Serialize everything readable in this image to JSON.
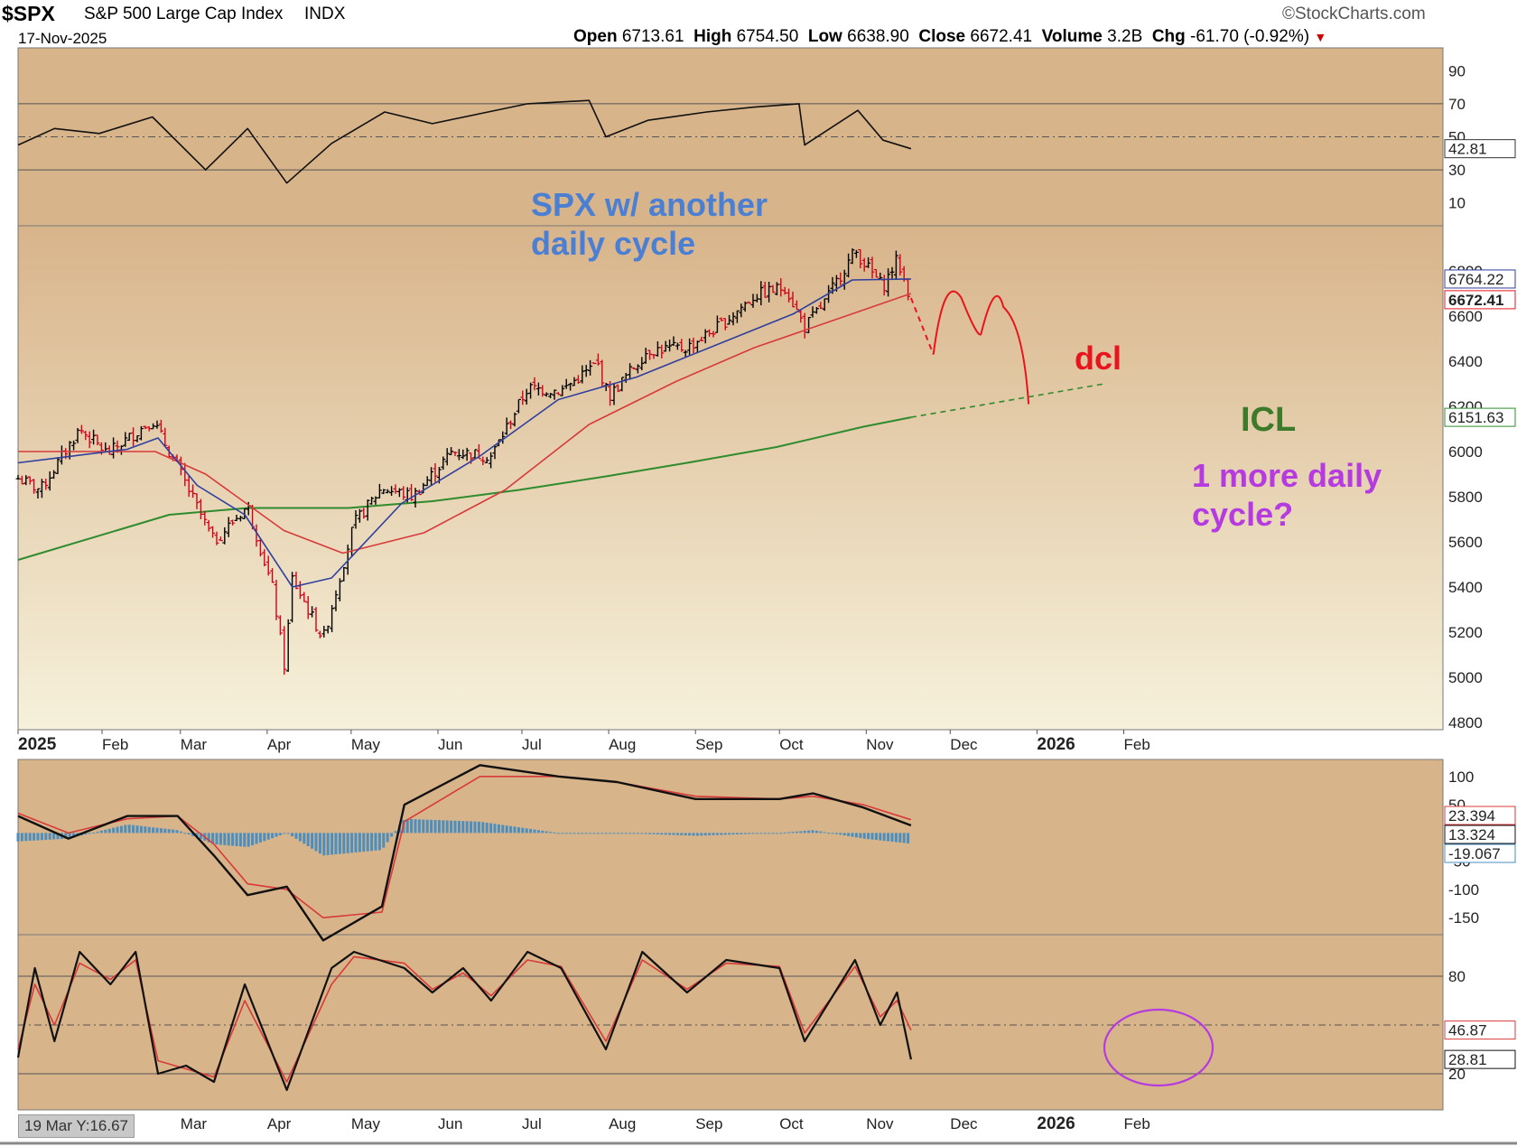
{
  "header": {
    "symbol": "$SPX",
    "name": "S&P 500 Large Cap Index",
    "exchange": "INDX",
    "date": "17-Nov-2025",
    "brand": "StockCharts.com",
    "open_label": "Open",
    "open": "6713.61",
    "high_label": "High",
    "high": "6754.50",
    "low_label": "Low",
    "low": "6638.90",
    "close_label": "Close",
    "close": "6672.41",
    "volume_label": "Volume",
    "volume": "3.2B",
    "chg_label": "Chg",
    "chg": "-61.70 (-0.92%)",
    "down_arrow": "▼"
  },
  "annotations": {
    "title_line1": "SPX w/ another",
    "title_line2": "daily cycle",
    "dcl": "dcl",
    "icl": "ICL",
    "question_line1": "1 more daily",
    "question_line2": "cycle?"
  },
  "tooltip": "19 Mar Y:16.67",
  "colors": {
    "bg_top": "#d8b48a",
    "bg_bottom": "#f6f1db",
    "ma_short": "#2f3f9e",
    "ma_mid": "#d83a3a",
    "ma_long": "#2e8b2e",
    "up_bar": "#000000",
    "down_bar": "#d0021b",
    "annot_blue": "#4a7fd4",
    "annot_red": "#e8141e",
    "annot_green": "#3d7a2a",
    "annot_purple": "#b53be0",
    "histogram": "#4a8fc0"
  },
  "chart_data": [
    {
      "type": "line",
      "name": "rsi",
      "ylim": [
        0,
        100
      ],
      "y_ticks": [
        10,
        30,
        50,
        70,
        90
      ],
      "reference_lines": [
        30,
        50,
        70
      ],
      "current_value": "42.81",
      "x": [
        "2025-01-02",
        "2025-01-15",
        "2025-01-31",
        "2025-02-19",
        "2025-03-10",
        "2025-03-25",
        "2025-04-08",
        "2025-04-24",
        "2025-05-13",
        "2025-05-30",
        "2025-06-16",
        "2025-07-03",
        "2025-07-25",
        "2025-07-31",
        "2025-08-15",
        "2025-09-05",
        "2025-09-22",
        "2025-10-08",
        "2025-10-10",
        "2025-10-29",
        "2025-11-07",
        "2025-11-17"
      ],
      "values": [
        45,
        55,
        52,
        62,
        30,
        55,
        22,
        46,
        65,
        58,
        64,
        70,
        72,
        50,
        60,
        65,
        68,
        70,
        45,
        66,
        48,
        42.81
      ]
    },
    {
      "type": "bar",
      "subtype": "ohlc",
      "name": "$SPX",
      "ylim": [
        4800,
        7000
      ],
      "y_ticks": [
        4800,
        5000,
        5200,
        5400,
        5600,
        5800,
        6000,
        6200,
        6400,
        6600,
        6800
      ],
      "x_ticks": [
        "2025",
        "Feb",
        "Mar",
        "Apr",
        "May",
        "Jun",
        "Jul",
        "Aug",
        "Sep",
        "Oct",
        "Nov",
        "Dec",
        "2026",
        "Feb"
      ],
      "price_labels": [
        "6764.22",
        "6672.41",
        "6151.63"
      ],
      "close_path": {
        "x": [
          "2025-01-02",
          "2025-01-10",
          "2025-01-24",
          "2025-02-03",
          "2025-02-19",
          "2025-02-28",
          "2025-03-13",
          "2025-03-25",
          "2025-04-03",
          "2025-04-08",
          "2025-04-09",
          "2025-04-21",
          "2025-05-02",
          "2025-05-12",
          "2025-05-23",
          "2025-06-06",
          "2025-06-20",
          "2025-07-03",
          "2025-07-15",
          "2025-07-28",
          "2025-08-01",
          "2025-08-15",
          "2025-08-29",
          "2025-09-10",
          "2025-09-22",
          "2025-10-03",
          "2025-10-10",
          "2025-10-17",
          "2025-10-28",
          "2025-10-31",
          "2025-11-07",
          "2025-11-12",
          "2025-11-17"
        ],
        "values": [
          5880,
          5830,
          6100,
          5990,
          6140,
          5930,
          5600,
          5760,
          5390,
          4980,
          5460,
          5170,
          5680,
          5840,
          5800,
          6000,
          5980,
          6280,
          6270,
          6390,
          6240,
          6450,
          6460,
          6560,
          6690,
          6730,
          6550,
          6660,
          6890,
          6840,
          6730,
          6850,
          6672.41
        ]
      },
      "ma_short": {
        "x": [
          "2025-01-02",
          "2025-02-10",
          "2025-02-21",
          "2025-03-07",
          "2025-03-24",
          "2025-04-10",
          "2025-04-24",
          "2025-05-19",
          "2025-06-16",
          "2025-07-14",
          "2025-08-11",
          "2025-09-08",
          "2025-10-06",
          "2025-10-27",
          "2025-11-17"
        ],
        "values": [
          5950,
          6010,
          6060,
          5850,
          5720,
          5400,
          5440,
          5770,
          5980,
          6230,
          6330,
          6470,
          6610,
          6760,
          6764.22
        ]
      },
      "ma_mid": {
        "x": [
          "2025-01-02",
          "2025-02-20",
          "2025-03-10",
          "2025-04-07",
          "2025-04-28",
          "2025-05-27",
          "2025-06-25",
          "2025-07-25",
          "2025-08-25",
          "2025-09-22",
          "2025-10-20",
          "2025-11-17"
        ],
        "values": [
          6000,
          6000,
          5900,
          5650,
          5550,
          5640,
          5830,
          6120,
          6310,
          6460,
          6580,
          6700
        ]
      },
      "ma_long": {
        "x": [
          "2025-01-02",
          "2025-02-25",
          "2025-03-25",
          "2025-04-30",
          "2025-05-30",
          "2025-06-30",
          "2025-07-31",
          "2025-08-29",
          "2025-09-30",
          "2025-10-31",
          "2025-11-17"
        ],
        "values": [
          5520,
          5720,
          5750,
          5750,
          5780,
          5830,
          5890,
          5950,
          6020,
          6110,
          6151.63
        ]
      },
      "projection_path": {
        "x": [
          "2025-11-17",
          "2025-11-25",
          "2025-12-05",
          "2025-12-12",
          "2025-12-20",
          "2025-12-29"
        ],
        "values": [
          6680,
          6430,
          6680,
          6520,
          6640,
          6210
        ]
      },
      "trend_extension": {
        "x": [
          "2025-11-17",
          "2026-01-25"
        ],
        "values": [
          6151.63,
          6300
        ]
      }
    },
    {
      "type": "line",
      "name": "ppo",
      "ylim": [
        -180,
        130
      ],
      "y_ticks": [
        -150,
        -100,
        -50,
        50,
        100
      ],
      "current_values": [
        "23.394",
        "13.324",
        "-19.067"
      ],
      "x": [
        "2025-01-02",
        "2025-01-20",
        "2025-02-10",
        "2025-02-28",
        "2025-03-13",
        "2025-03-25",
        "2025-04-08",
        "2025-04-21",
        "2025-05-12",
        "2025-05-20",
        "2025-06-16",
        "2025-07-14",
        "2025-08-04",
        "2025-09-01",
        "2025-10-01",
        "2025-10-13",
        "2025-10-31",
        "2025-11-17"
      ],
      "values": [
        30,
        -10,
        30,
        30,
        -40,
        -110,
        -95,
        -190,
        -130,
        50,
        120,
        100,
        90,
        60,
        60,
        70,
        45,
        13.324
      ],
      "signal": [
        35,
        0,
        25,
        30,
        -20,
        -90,
        -100,
        -150,
        -140,
        20,
        100,
        100,
        90,
        65,
        60,
        65,
        50,
        23.394
      ],
      "histogram": [
        -15,
        -10,
        15,
        5,
        -20,
        -25,
        0,
        -40,
        -30,
        25,
        20,
        0,
        0,
        -5,
        0,
        5,
        -10,
        -19.067
      ]
    },
    {
      "type": "line",
      "name": "stochastic",
      "ylim": [
        0,
        100
      ],
      "y_ticks": [
        20,
        80
      ],
      "reference_lines": [
        20,
        50,
        80
      ],
      "current_values": [
        "46.87",
        "28.81"
      ],
      "x": [
        "2025-01-02",
        "2025-01-08",
        "2025-01-15",
        "2025-01-24",
        "2025-02-04",
        "2025-02-13",
        "2025-02-21",
        "2025-03-03",
        "2025-03-13",
        "2025-03-24",
        "2025-04-08",
        "2025-04-24",
        "2025-05-02",
        "2025-05-20",
        "2025-05-30",
        "2025-06-10",
        "2025-06-20",
        "2025-07-03",
        "2025-07-15",
        "2025-07-31",
        "2025-08-13",
        "2025-08-29",
        "2025-09-12",
        "2025-10-01",
        "2025-10-10",
        "2025-10-28",
        "2025-11-06",
        "2025-11-12",
        "2025-11-17"
      ],
      "values": [
        30,
        85,
        40,
        95,
        75,
        95,
        20,
        25,
        15,
        75,
        10,
        85,
        95,
        85,
        70,
        85,
        65,
        95,
        85,
        35,
        95,
        70,
        90,
        85,
        40,
        90,
        50,
        70,
        28.81
      ],
      "signal": [
        35,
        75,
        50,
        88,
        78,
        90,
        28,
        23,
        18,
        65,
        15,
        75,
        92,
        88,
        72,
        82,
        68,
        90,
        86,
        40,
        90,
        72,
        88,
        86,
        45,
        86,
        55,
        65,
        46.87
      ]
    }
  ]
}
